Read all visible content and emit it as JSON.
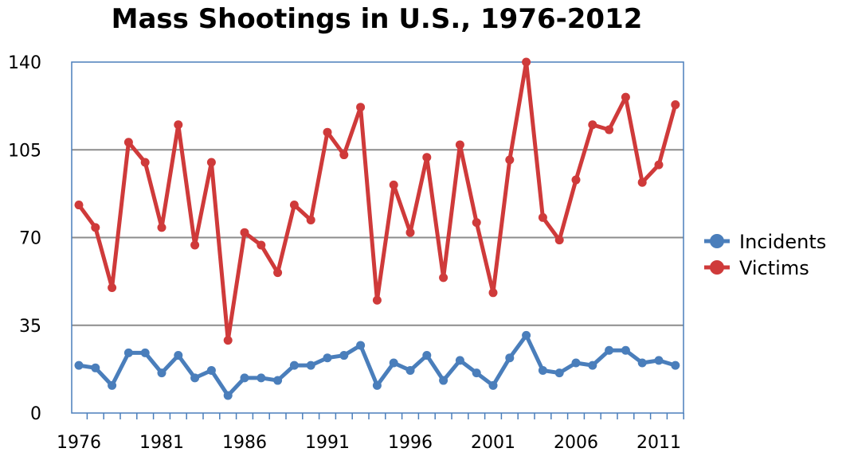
{
  "chart_data": {
    "type": "line",
    "title": "Mass Shootings in U.S., 1976-2012",
    "xlabel": "",
    "ylabel": "",
    "x": [
      1976,
      1977,
      1978,
      1979,
      1980,
      1981,
      1982,
      1983,
      1984,
      1985,
      1986,
      1987,
      1988,
      1989,
      1990,
      1991,
      1992,
      1993,
      1994,
      1995,
      1996,
      1997,
      1998,
      1999,
      2000,
      2001,
      2002,
      2003,
      2004,
      2005,
      2006,
      2007,
      2008,
      2009,
      2010,
      2011,
      2012
    ],
    "x_ticks": [
      "1976",
      "1981",
      "1986",
      "1991",
      "1996",
      "2001",
      "2006",
      "2011"
    ],
    "y_ticks": [
      "0",
      "35",
      "70",
      "105",
      "140"
    ],
    "ylim": [
      0,
      140
    ],
    "grid": "horizontal",
    "legend_position": "right",
    "series": [
      {
        "name": "Incidents",
        "color": "#4a7ebb",
        "values": [
          19,
          18,
          11,
          24,
          24,
          16,
          23,
          14,
          17,
          7,
          14,
          14,
          13,
          19,
          19,
          22,
          23,
          27,
          11,
          20,
          17,
          23,
          13,
          21,
          16,
          11,
          22,
          31,
          17,
          16,
          20,
          19,
          25,
          25,
          20,
          21,
          19
        ]
      },
      {
        "name": "Victims",
        "color": "#cf3a3a",
        "values": [
          83,
          74,
          50,
          108,
          100,
          74,
          115,
          67,
          100,
          29,
          72,
          67,
          56,
          83,
          77,
          112,
          103,
          122,
          45,
          91,
          72,
          102,
          54,
          107,
          76,
          48,
          101,
          140,
          78,
          69,
          93,
          115,
          113,
          126,
          92,
          99,
          123
        ]
      }
    ]
  }
}
